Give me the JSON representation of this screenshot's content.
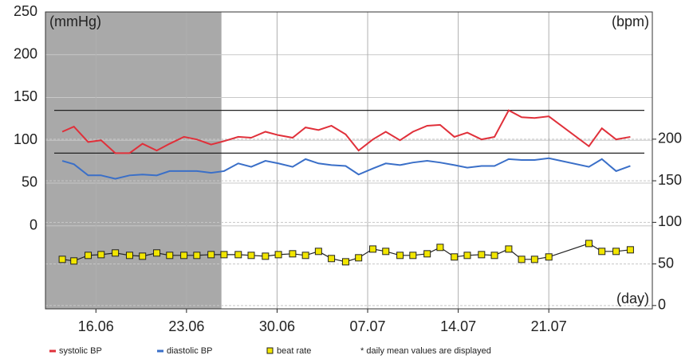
{
  "chart_data": {
    "type": "line",
    "x": [
      13.4,
      14.3,
      15.4,
      16.4,
      17.5,
      18.6,
      19.6,
      20.7,
      21.7,
      22.8,
      23.8,
      24.9,
      25.9,
      27.0,
      28.0,
      29.1,
      30.1,
      31.2,
      32.2,
      33.2,
      34.2,
      35.3,
      36.3,
      37.4,
      38.4,
      39.5,
      40.5,
      41.6,
      42.6,
      43.7,
      44.7,
      45.8,
      46.8,
      47.9,
      48.9,
      49.9,
      51.0,
      54.1,
      55.1,
      56.2,
      57.3
    ],
    "series": [
      {
        "name": "systolic BP",
        "color": "#e0303a",
        "axis": "y",
        "values": [
          110,
          116,
          98,
          100,
          85,
          85,
          96,
          88,
          96,
          104,
          101,
          95,
          99,
          104,
          103,
          110,
          106,
          103,
          115,
          112,
          117,
          107,
          88,
          101,
          110,
          100,
          110,
          117,
          118,
          104,
          109,
          101,
          104,
          135,
          127,
          126,
          128,
          93,
          114,
          101,
          104
        ]
      },
      {
        "name": "diastolic BP",
        "color": "#3a6fc8",
        "axis": "y",
        "values": [
          76,
          72,
          59,
          59,
          55,
          59,
          60,
          59,
          64,
          64,
          64,
          62,
          64,
          73,
          69,
          76,
          73,
          69,
          78,
          73,
          71,
          70,
          60,
          67,
          73,
          71,
          74,
          76,
          74,
          71,
          68,
          70,
          70,
          78,
          77,
          77,
          79,
          69,
          78,
          64,
          70
        ]
      },
      {
        "name": "beat rate",
        "color": "#f2e600",
        "axis": "y2",
        "marker": "square",
        "line_color": "#222222",
        "values": [
          55.5,
          53.6,
          60.3,
          61.2,
          63.2,
          60.3,
          59.3,
          63.2,
          60.3,
          60.3,
          60.3,
          61.2,
          61.2,
          61.2,
          60.3,
          59.3,
          61.2,
          62.2,
          60.3,
          65.1,
          56.5,
          52.6,
          57.4,
          67.9,
          65.1,
          60.3,
          60.3,
          62.2,
          69.9,
          58.4,
          60.3,
          61.2,
          60.3,
          67.9,
          55.5,
          55.5,
          58.4,
          74.6,
          65.1,
          65.1,
          67.0
        ]
      }
    ],
    "xlim": [
      12.1,
      59
    ],
    "xticks": [
      {
        "value": 16,
        "label": "16.06"
      },
      {
        "value": 23,
        "label": "23.06"
      },
      {
        "value": 30,
        "label": "30.06"
      },
      {
        "value": 37,
        "label": "07.07"
      },
      {
        "value": 44,
        "label": "14.07"
      },
      {
        "value": 51,
        "label": "21.07"
      }
    ],
    "ylim": [
      -97,
      250
    ],
    "yticks": [
      0,
      50,
      100,
      150,
      200,
      250
    ],
    "y2lim": [
      -4,
      353
    ],
    "y2ticks": [
      0,
      50,
      100,
      150,
      200
    ],
    "reference_lines": [
      85,
      135
    ],
    "shaded_xrange": [
      12.1,
      25.7
    ],
    "y_label": "(mmHg)",
    "y2_label": "(bpm)",
    "x_label": "(day)",
    "note": "* daily mean values are displayed",
    "grid": true
  }
}
